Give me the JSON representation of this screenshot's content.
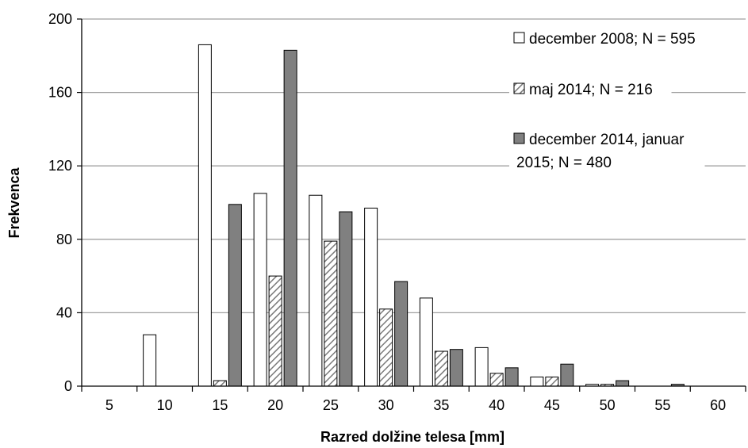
{
  "chart_data": {
    "type": "bar",
    "xlabel": "Razred dolžine telesa [mm]",
    "ylabel": "Frekvenca",
    "ylim": [
      0,
      200
    ],
    "yticks": [
      "0",
      "40",
      "80",
      "120",
      "160",
      "200"
    ],
    "categories": [
      "5",
      "10",
      "15",
      "20",
      "25",
      "30",
      "35",
      "40",
      "45",
      "50",
      "55",
      "60"
    ],
    "grid": true,
    "legend_position": "top-right",
    "series": [
      {
        "name": "december 2008; N = 595",
        "legend_lines": [
          "december 2008; N = 595"
        ],
        "pattern": "white",
        "values": [
          0,
          28,
          186,
          105,
          104,
          97,
          48,
          21,
          5,
          1,
          0,
          0
        ]
      },
      {
        "name": "maj 2014; N = 216",
        "legend_lines": [
          "maj 2014; N = 216"
        ],
        "pattern": "hatch",
        "values": [
          0,
          0,
          3,
          60,
          79,
          42,
          19,
          7,
          5,
          1,
          0,
          0
        ]
      },
      {
        "name": "december 2014, januar 2015; N = 480",
        "legend_lines": [
          "december 2014, januar",
          "2015; N = 480"
        ],
        "pattern": "gray",
        "values": [
          0,
          0,
          99,
          183,
          95,
          57,
          20,
          10,
          12,
          3,
          1,
          0
        ]
      }
    ],
    "colors": {
      "white": "#ffffff",
      "gray": "#808080",
      "outline": "#000000",
      "grid": "#a0a0a0"
    }
  }
}
